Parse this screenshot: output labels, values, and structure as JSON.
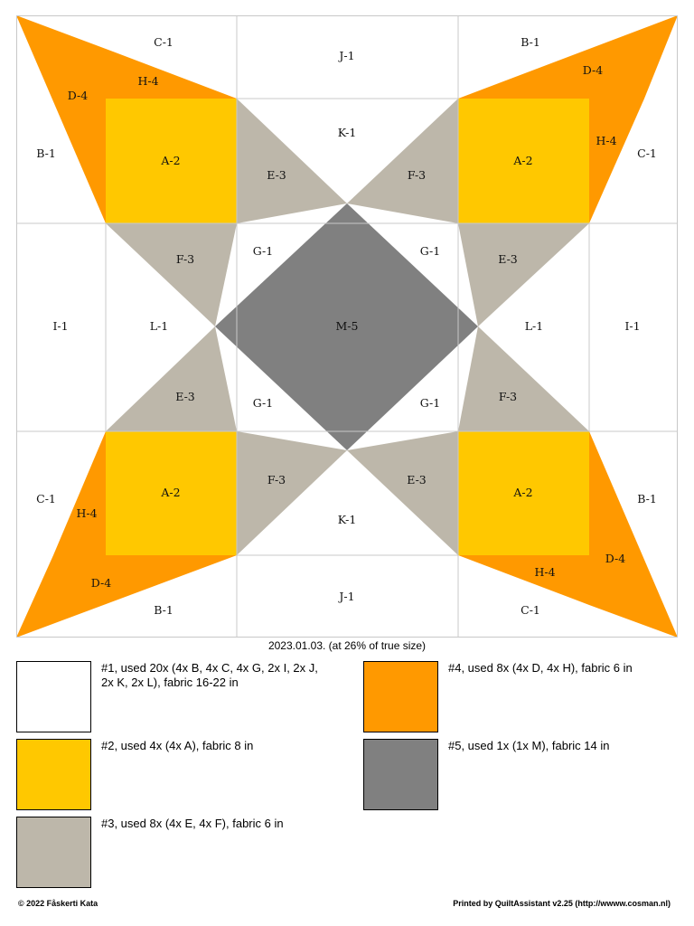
{
  "colors": {
    "white": "#ffffff",
    "yellow": "#ffc800",
    "taupe": "#bdb7aa",
    "orange": "#ff9900",
    "gray": "#808080",
    "grid_line": "#c8c8c8"
  },
  "pieces": {
    "top_left": {
      "c1": "C-1",
      "d4": "D-4",
      "h4": "H-4",
      "b1": "B-1",
      "a2": "A-2"
    },
    "top_center": {
      "j1": "J-1",
      "k1": "K-1",
      "e3": "E-3",
      "f3": "F-3"
    },
    "top_right": {
      "b1": "B-1",
      "d4": "D-4",
      "h4": "H-4",
      "c1": "C-1",
      "a2": "A-2"
    },
    "middle": {
      "i1_left": "I-1",
      "l1_left": "L-1",
      "f3_left": "F-3",
      "e3_left": "E-3",
      "g1_tl": "G-1",
      "g1_tr": "G-1",
      "g1_bl": "G-1",
      "g1_br": "G-1",
      "m5": "M-5",
      "e3_right": "E-3",
      "f3_right": "F-3",
      "l1_right": "L-1",
      "i1_right": "I-1"
    },
    "bottom_left": {
      "c1": "C-1",
      "h4": "H-4",
      "a2": "A-2",
      "d4": "D-4",
      "b1": "B-1"
    },
    "bottom_center": {
      "f3": "F-3",
      "e3": "E-3",
      "k1": "K-1",
      "j1": "J-1"
    },
    "bottom_right": {
      "a2": "A-2",
      "b1": "B-1",
      "d4": "D-4",
      "h4": "H-4",
      "c1": "C-1"
    }
  },
  "caption": "2023.01.03. (at 26% of true size)",
  "legend": [
    {
      "color": "white",
      "text": "#1, used 20x (4x B, 4x C, 4x G, 2x I, 2x J, 2x K, 2x L), fabric 16-22 in"
    },
    {
      "color": "yellow",
      "text": "#2, used 4x (4x A), fabric 8 in"
    },
    {
      "color": "taupe",
      "text": "#3, used 8x (4x E, 4x F), fabric 6 in"
    },
    {
      "color": "orange",
      "text": "#4, used 8x (4x D, 4x H), fabric 6 in"
    },
    {
      "color": "gray",
      "text": "#5, used 1x (1x M), fabric 14 in"
    }
  ],
  "footer": {
    "copyright": "© 2022 Fåskerti Kata",
    "printed_by": "Printed by QuiltAssistant v2.25 (http://wwww.cosman.nl)"
  }
}
